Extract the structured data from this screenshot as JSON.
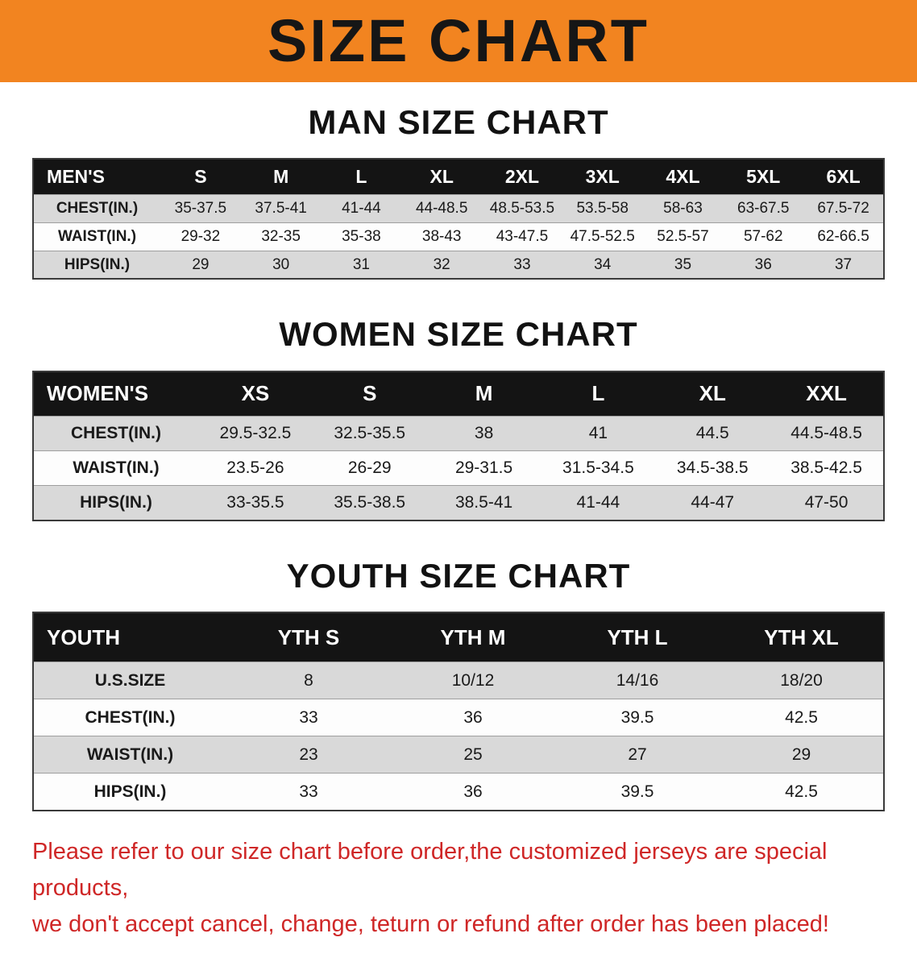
{
  "banner": {
    "title": "SIZE CHART",
    "bg_color": "#f28420"
  },
  "sections": [
    {
      "id": "men",
      "heading": "MAN SIZE CHART",
      "header_row": [
        "MEN'S",
        "S",
        "M",
        "L",
        "XL",
        "2XL",
        "3XL",
        "4XL",
        "5XL",
        "6XL"
      ],
      "rows": [
        [
          "CHEST(IN.)",
          "35-37.5",
          "37.5-41",
          "41-44",
          "44-48.5",
          "48.5-53.5",
          "53.5-58",
          "58-63",
          "63-67.5",
          "67.5-72"
        ],
        [
          "WAIST(IN.)",
          "29-32",
          "32-35",
          "35-38",
          "38-43",
          "43-47.5",
          "47.5-52.5",
          "52.5-57",
          "57-62",
          "62-66.5"
        ],
        [
          "HIPS(IN.)",
          "29",
          "30",
          "31",
          "32",
          "33",
          "34",
          "35",
          "36",
          "37"
        ]
      ]
    },
    {
      "id": "women",
      "heading": "WOMEN SIZE CHART",
      "header_row": [
        "WOMEN'S",
        "XS",
        "S",
        "M",
        "L",
        "XL",
        "XXL"
      ],
      "rows": [
        [
          "CHEST(IN.)",
          "29.5-32.5",
          "32.5-35.5",
          "38",
          "41",
          "44.5",
          "44.5-48.5"
        ],
        [
          "WAIST(IN.)",
          "23.5-26",
          "26-29",
          "29-31.5",
          "31.5-34.5",
          "34.5-38.5",
          "38.5-42.5"
        ],
        [
          "HIPS(IN.)",
          "33-35.5",
          "35.5-38.5",
          "38.5-41",
          "41-44",
          "44-47",
          "47-50"
        ]
      ]
    },
    {
      "id": "youth",
      "heading": "YOUTH SIZE CHART",
      "header_row": [
        "YOUTH",
        "YTH S",
        "YTH M",
        "YTH L",
        "YTH XL"
      ],
      "rows": [
        [
          "U.S.SIZE",
          "8",
          "10/12",
          "14/16",
          "18/20"
        ],
        [
          "CHEST(IN.)",
          "33",
          "36",
          "39.5",
          "42.5"
        ],
        [
          "WAIST(IN.)",
          "23",
          "25",
          "27",
          "29"
        ],
        [
          "HIPS(IN.)",
          "33",
          "36",
          "39.5",
          "42.5"
        ]
      ]
    }
  ],
  "footer": {
    "line1": "Please refer to our size chart before order,the customized jerseys are special products,",
    "line2": "we don't accept cancel, change, teturn or refund after order has been placed!",
    "text_color": "#cf2727"
  }
}
